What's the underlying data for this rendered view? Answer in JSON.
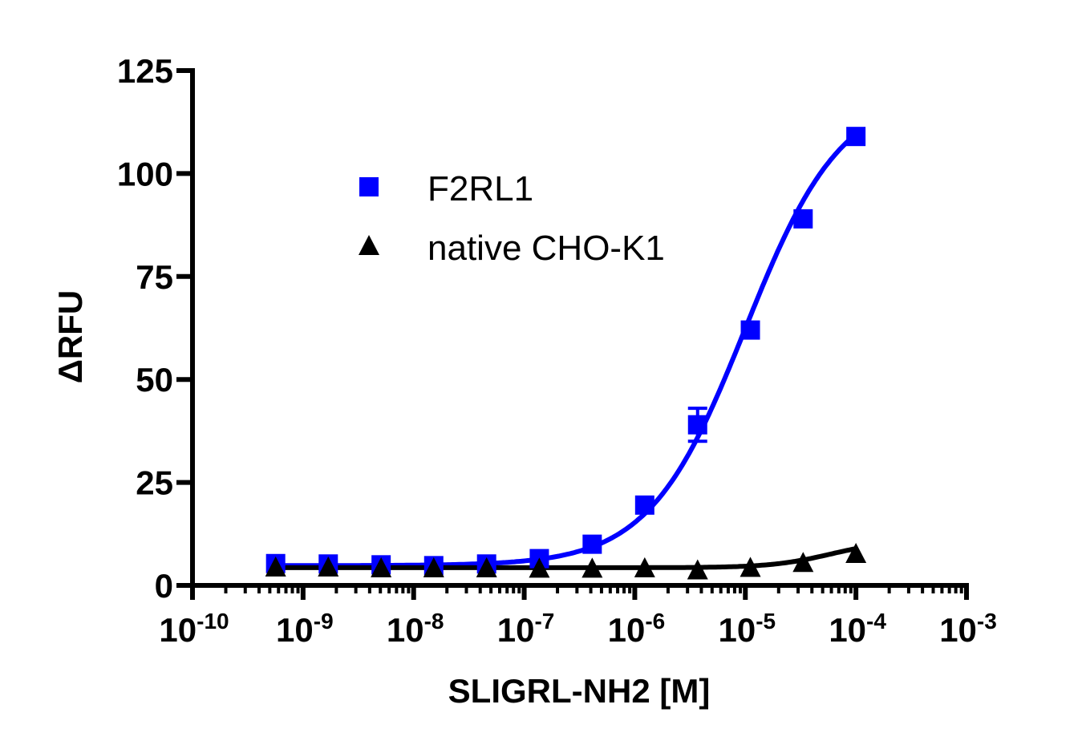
{
  "chart_data": {
    "type": "scatter",
    "title": "",
    "xlabel": "SLIGRL-NH2 [M]",
    "ylabel": "ΔRFU",
    "x_scale": "log",
    "xlim": [
      1e-10,
      0.001
    ],
    "ylim": [
      0,
      125
    ],
    "x_tick_labels": [
      {
        "base": "10",
        "exp": "-10"
      },
      {
        "base": "10",
        "exp": "-9"
      },
      {
        "base": "10",
        "exp": "-8"
      },
      {
        "base": "10",
        "exp": "-7"
      },
      {
        "base": "10",
        "exp": "-6"
      },
      {
        "base": "10",
        "exp": "-5"
      },
      {
        "base": "10",
        "exp": "-4"
      },
      {
        "base": "10",
        "exp": "-3"
      }
    ],
    "y_ticks": [
      "0",
      "25",
      "50",
      "75",
      "100",
      "125"
    ],
    "grid": false,
    "legend_position": "top-left",
    "x": [
      5.65e-10,
      1.69e-09,
      5.08e-09,
      1.52e-08,
      4.57e-08,
      1.37e-07,
      4.12e-07,
      1.23e-06,
      3.7e-06,
      1.11e-05,
      3.33e-05,
      0.0001
    ],
    "series": [
      {
        "name": "F2RL1",
        "color": "#0000ff",
        "marker": "square",
        "values": [
          5.3,
          5.2,
          5.0,
          4.8,
          5.2,
          6.5,
          10,
          19.5,
          39,
          62,
          89,
          109
        ],
        "error": [
          0,
          0,
          0,
          0,
          0,
          0,
          0,
          0,
          4,
          0,
          0,
          0
        ]
      },
      {
        "name": "native CHO-K1",
        "color": "#000000",
        "marker": "triangle",
        "values": [
          4.5,
          4.5,
          4.3,
          4.3,
          4.3,
          4.2,
          4.2,
          4.3,
          3.8,
          4.4,
          5.6,
          7.8
        ],
        "error": [
          0,
          0,
          0,
          0,
          0,
          0,
          0,
          0,
          0,
          0,
          0,
          0
        ]
      }
    ]
  }
}
